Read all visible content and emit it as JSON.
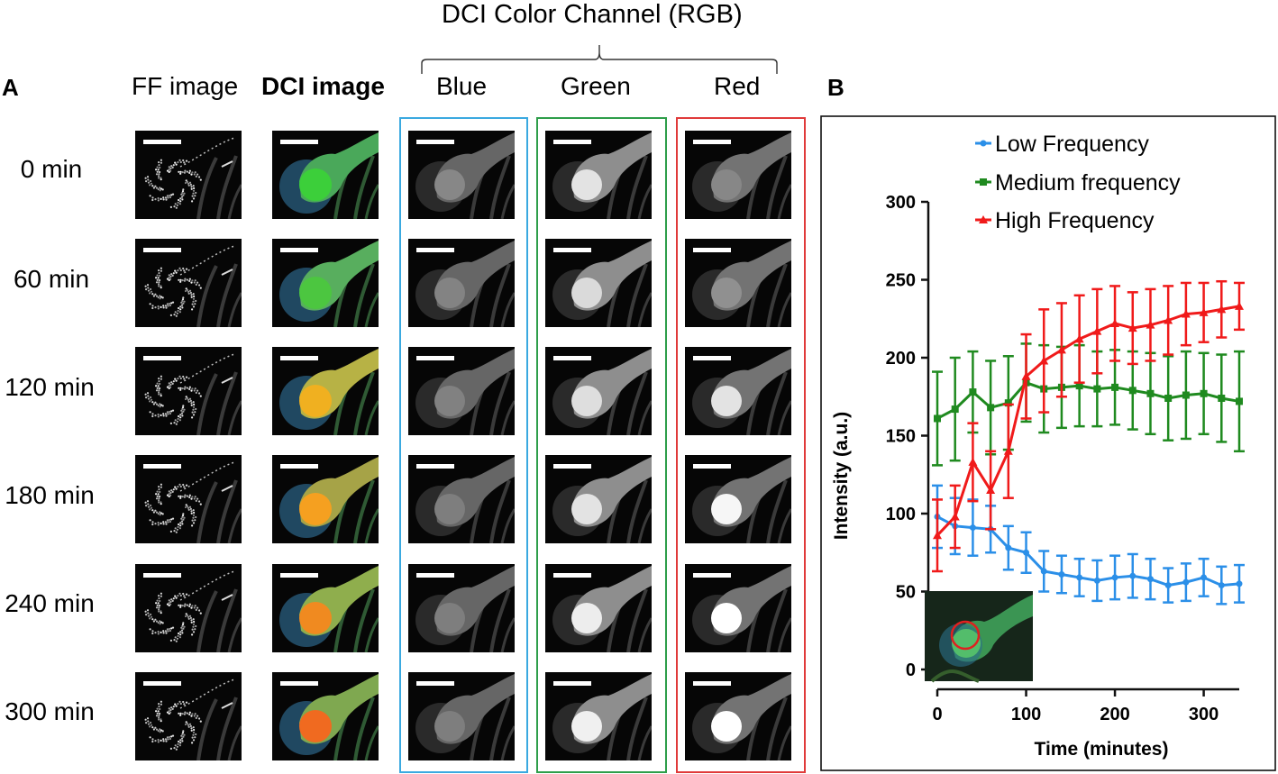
{
  "header": {
    "channel_title": "DCI Color Channel (RGB)",
    "panel_a": "A",
    "panel_b": "B"
  },
  "columns": [
    {
      "label": "FF image",
      "bold": false
    },
    {
      "label": "DCI image",
      "bold": true
    },
    {
      "label": "Blue",
      "bold": false
    },
    {
      "label": "Green",
      "bold": false
    },
    {
      "label": "Red",
      "bold": false
    }
  ],
  "rows": [
    "0 min",
    "60 min",
    "120 min",
    "180 min",
    "240 min",
    "300 min"
  ],
  "colors": {
    "blue_box": "#3aa9e0",
    "green_box": "#2e9e4a",
    "red_box": "#e03a3a",
    "low": "#2b8fe8",
    "medium": "#1f8a1f",
    "high": "#f01a1a"
  },
  "chart_data": {
    "type": "line",
    "title": "",
    "xlabel": "Time (minutes)",
    "ylabel": "Intensity (a.u.)",
    "xlim": [
      0,
      340
    ],
    "ylim": [
      0,
      300
    ],
    "xticks": [
      0,
      100,
      200,
      300
    ],
    "yticks": [
      0,
      50,
      100,
      150,
      200,
      250,
      300
    ],
    "legend_position": "top",
    "x": [
      0,
      20,
      40,
      60,
      80,
      100,
      120,
      140,
      160,
      180,
      200,
      220,
      240,
      260,
      280,
      300,
      320,
      340
    ],
    "series": [
      {
        "name": "Low Frequency",
        "color": "#2b8fe8",
        "values": [
          98,
          92,
          91,
          90,
          78,
          75,
          63,
          61,
          59,
          57,
          59,
          60,
          58,
          54,
          56,
          59,
          54,
          55
        ],
        "errors": [
          20,
          18,
          18,
          15,
          14,
          13,
          13,
          12,
          12,
          13,
          14,
          14,
          13,
          11,
          12,
          12,
          12,
          12
        ]
      },
      {
        "name": "Medium frequency",
        "color": "#1f8a1f",
        "values": [
          161,
          167,
          178,
          168,
          171,
          184,
          180,
          181,
          182,
          180,
          181,
          179,
          177,
          174,
          176,
          177,
          174,
          172
        ],
        "errors": [
          30,
          33,
          26,
          30,
          30,
          25,
          28,
          26,
          26,
          24,
          24,
          25,
          26,
          27,
          28,
          26,
          28,
          32
        ]
      },
      {
        "name": "High Frequency",
        "color": "#f01a1a",
        "values": [
          86,
          98,
          133,
          115,
          140,
          188,
          198,
          205,
          212,
          217,
          222,
          219,
          221,
          224,
          228,
          229,
          231,
          233
        ],
        "errors": [
          23,
          20,
          25,
          25,
          30,
          27,
          33,
          30,
          28,
          27,
          24,
          23,
          23,
          22,
          20,
          19,
          18,
          15
        ]
      }
    ]
  }
}
